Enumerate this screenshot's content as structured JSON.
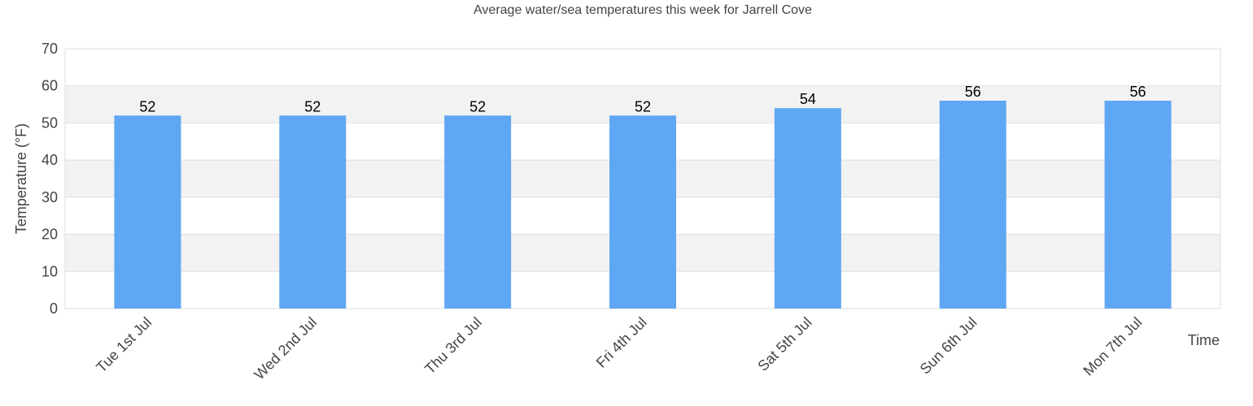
{
  "chart_data": {
    "type": "bar",
    "title": "Average water/sea temperatures this week for Jarrell Cove",
    "xlabel": "Time",
    "ylabel": "Temperature (°F)",
    "ylim": [
      0,
      70
    ],
    "yticks": [
      0,
      10,
      20,
      30,
      40,
      50,
      60,
      70
    ],
    "categories": [
      "Tue 1st Jul",
      "Wed 2nd Jul",
      "Thu 3rd Jul",
      "Fri 4th Jul",
      "Sat 5th Jul",
      "Sun 6th Jul",
      "Mon 7th Jul"
    ],
    "values": [
      52,
      52,
      52,
      52,
      54,
      56,
      56
    ],
    "data_labels": [
      "52",
      "52",
      "52",
      "52",
      "54",
      "56",
      "56"
    ],
    "bar_color": "#60a7f3",
    "grid": true,
    "legend": false
  }
}
